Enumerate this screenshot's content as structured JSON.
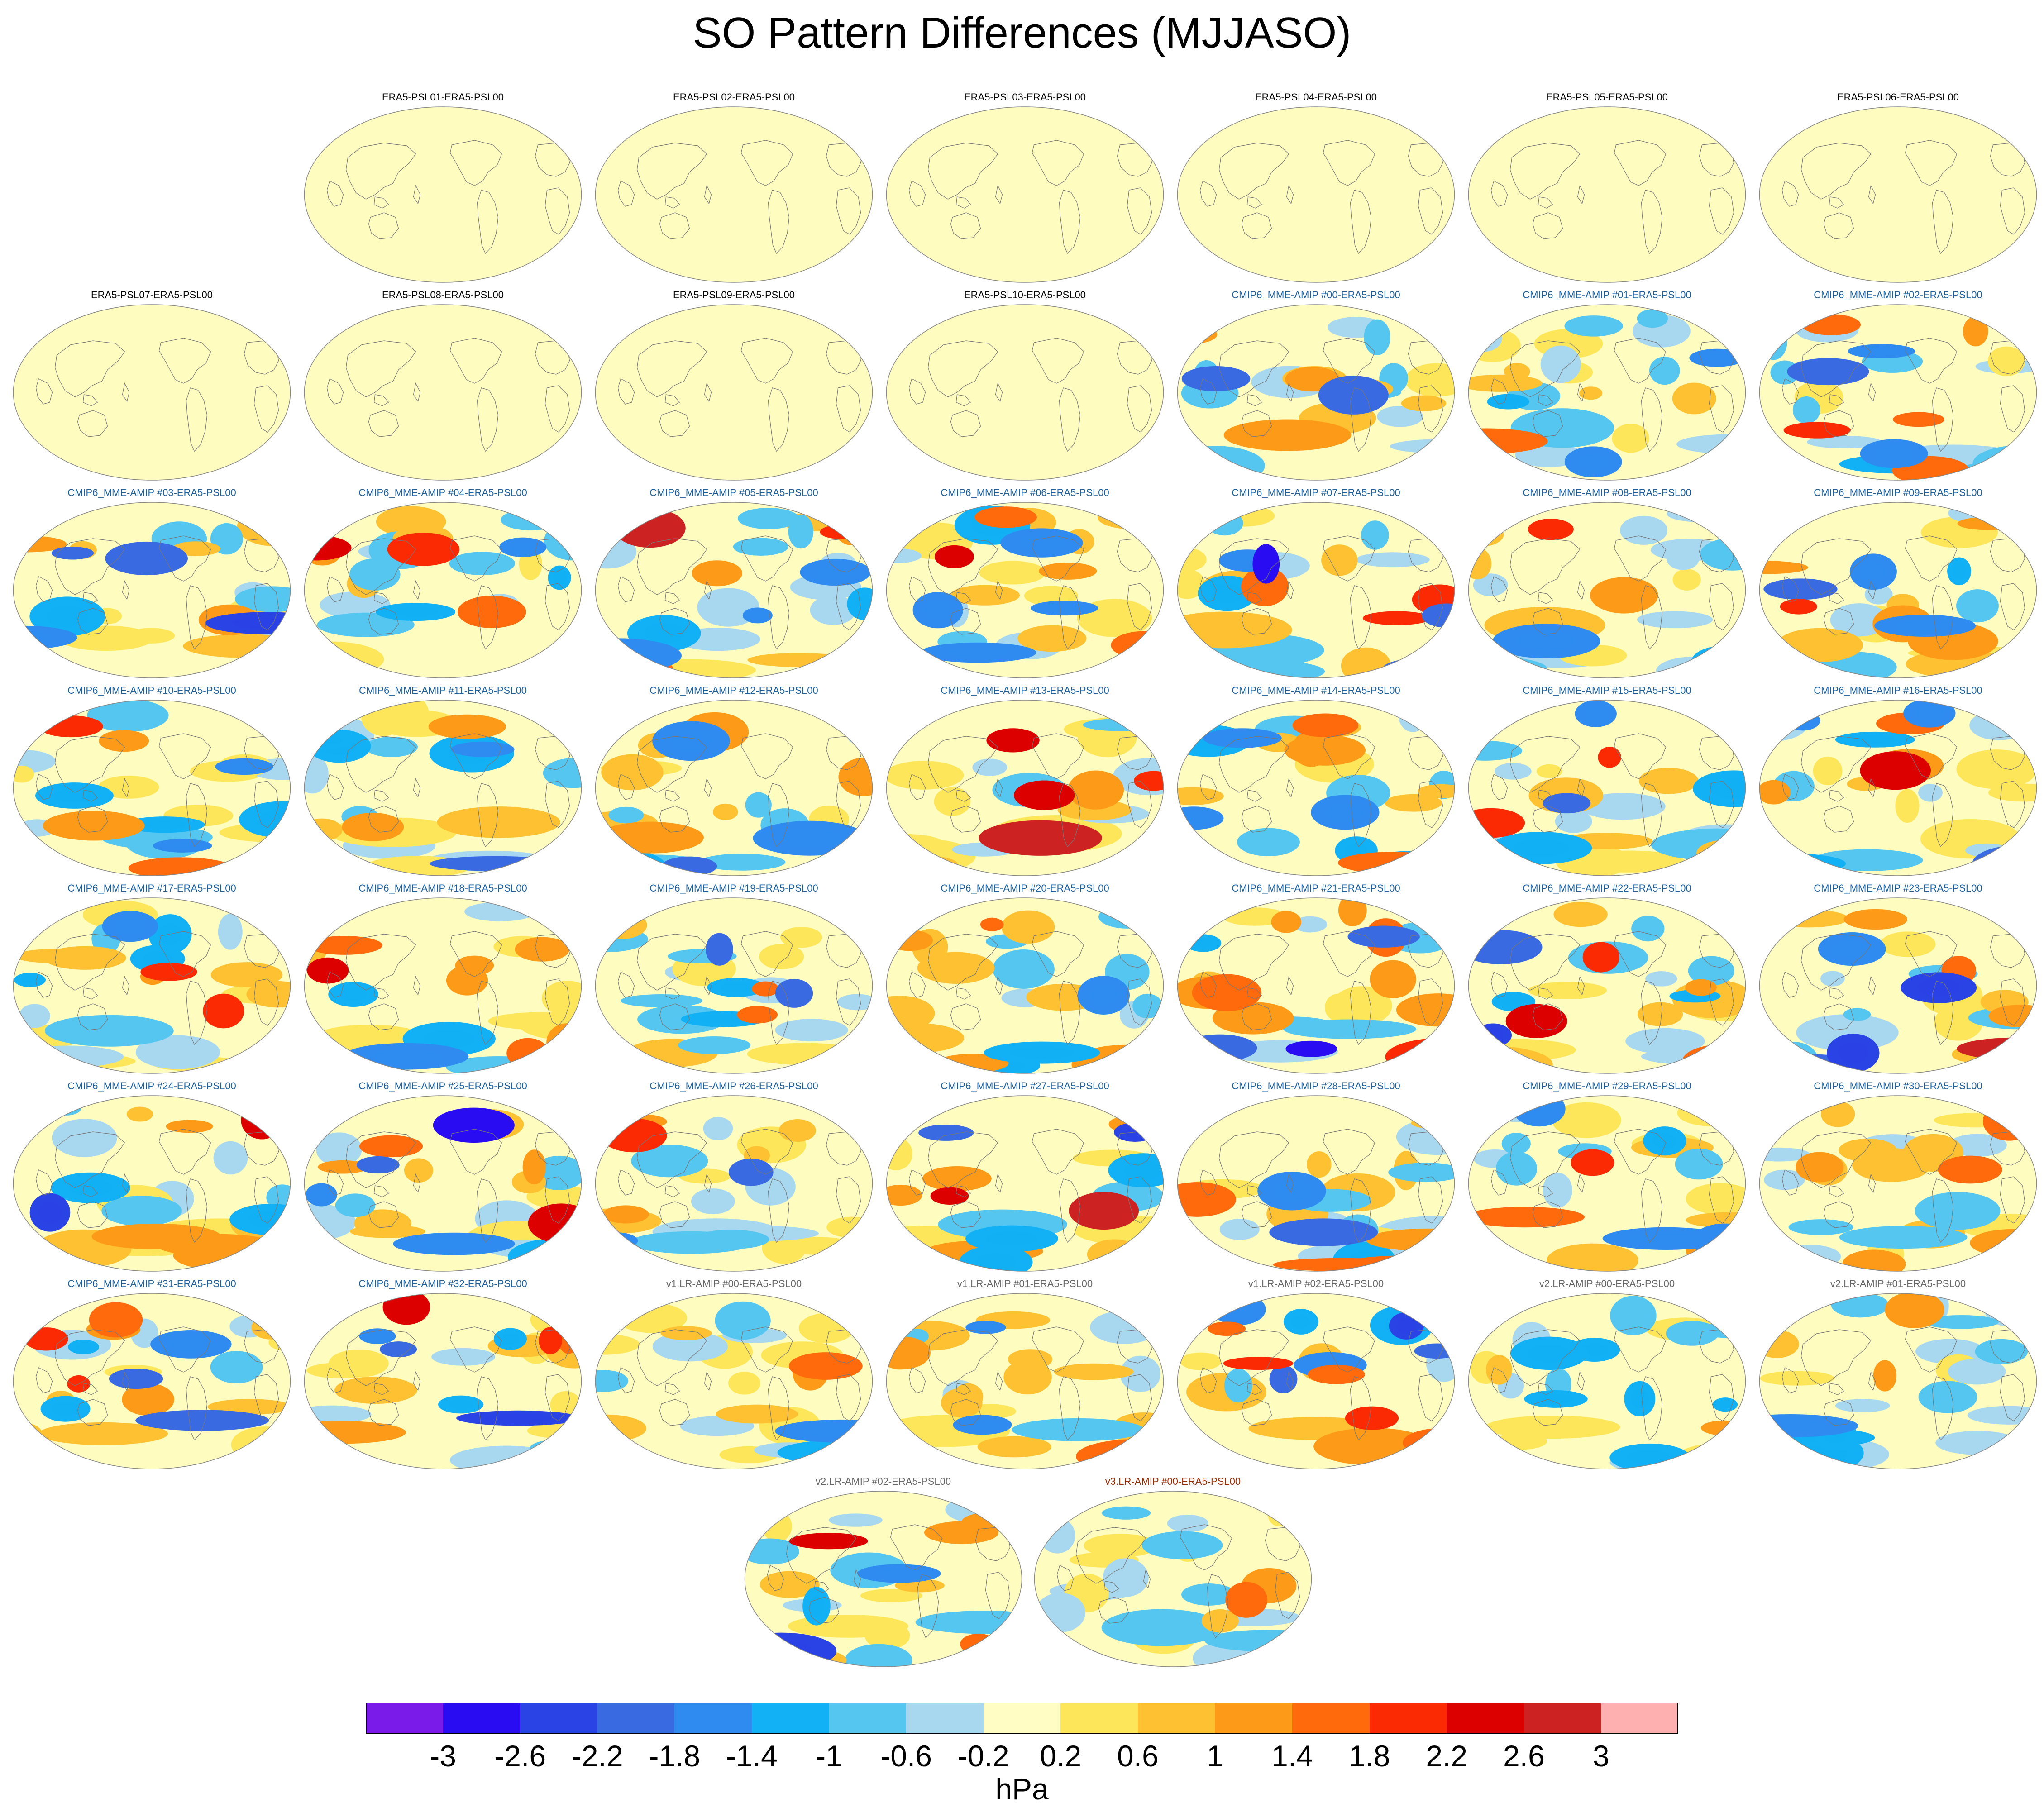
{
  "title": "SO Pattern Differences (MJJASO)",
  "units_label": "hPa",
  "colors": {
    "era5_label": "#000000",
    "cmip6_label": "#1a5fa0",
    "v1_label": "#666666",
    "v2_label": "#666666",
    "v3_label": "#9a2a00",
    "ocean_background": "#fffcc0",
    "coastline": "#777777"
  },
  "map_projection": "Robinson (global, Pacific-centred)",
  "colorbar": {
    "colors": [
      "#7a1bea",
      "#2a0cf2",
      "#2a43e4",
      "#3a6ae2",
      "#2f8bf0",
      "#12b0f5",
      "#55c6f0",
      "#a8d8ef",
      "#fffcc4",
      "#fee65a",
      "#fdc132",
      "#fd9a18",
      "#fe6a0c",
      "#fb2a02",
      "#dd0000",
      "#cc2222",
      "#feb0b0"
    ],
    "tick_labels": [
      "-3",
      "-2.6",
      "-2.2",
      "-1.8",
      "-1.4",
      "-1",
      "-0.6",
      "-0.2",
      "0.2",
      "0.6",
      "1",
      "1.4",
      "1.8",
      "2.2",
      "2.6",
      "3"
    ]
  },
  "panels": [
    {
      "label": "ERA5-PSL01-ERA5-PSL00",
      "group": "era5",
      "intensity": 0.0
    },
    {
      "label": "ERA5-PSL02-ERA5-PSL00",
      "group": "era5",
      "intensity": 0.0
    },
    {
      "label": "ERA5-PSL03-ERA5-PSL00",
      "group": "era5",
      "intensity": 0.0
    },
    {
      "label": "ERA5-PSL04-ERA5-PSL00",
      "group": "era5",
      "intensity": 0.0
    },
    {
      "label": "ERA5-PSL05-ERA5-PSL00",
      "group": "era5",
      "intensity": 0.0
    },
    {
      "label": "ERA5-PSL06-ERA5-PSL00",
      "group": "era5",
      "intensity": 0.0
    },
    {
      "label": "ERA5-PSL07-ERA5-PSL00",
      "group": "era5",
      "intensity": 0.0
    },
    {
      "label": "ERA5-PSL08-ERA5-PSL00",
      "group": "era5",
      "intensity": 0.0
    },
    {
      "label": "ERA5-PSL09-ERA5-PSL00",
      "group": "era5",
      "intensity": 0.0
    },
    {
      "label": "ERA5-PSL10-ERA5-PSL00",
      "group": "era5",
      "intensity": 0.0
    },
    {
      "label": "CMIP6_MME-AMIP  #00-ERA5-PSL00",
      "group": "cmip6",
      "intensity": 0.8
    },
    {
      "label": "CMIP6_MME-AMIP  #01-ERA5-PSL00",
      "group": "cmip6",
      "intensity": 0.8
    },
    {
      "label": "CMIP6_MME-AMIP  #02-ERA5-PSL00",
      "group": "cmip6",
      "intensity": 1.0
    },
    {
      "label": "CMIP6_MME-AMIP  #03-ERA5-PSL00",
      "group": "cmip6",
      "intensity": 0.9
    },
    {
      "label": "CMIP6_MME-AMIP  #04-ERA5-PSL00",
      "group": "cmip6",
      "intensity": 1.0
    },
    {
      "label": "CMIP6_MME-AMIP  #05-ERA5-PSL00",
      "group": "cmip6",
      "intensity": 1.0
    },
    {
      "label": "CMIP6_MME-AMIP  #06-ERA5-PSL00",
      "group": "cmip6",
      "intensity": 1.0
    },
    {
      "label": "CMIP6_MME-AMIP  #07-ERA5-PSL00",
      "group": "cmip6",
      "intensity": 1.0
    },
    {
      "label": "CMIP6_MME-AMIP  #08-ERA5-PSL00",
      "group": "cmip6",
      "intensity": 0.9
    },
    {
      "label": "CMIP6_MME-AMIP  #09-ERA5-PSL00",
      "group": "cmip6",
      "intensity": 0.9
    },
    {
      "label": "CMIP6_MME-AMIP  #10-ERA5-PSL00",
      "group": "cmip6",
      "intensity": 0.8
    },
    {
      "label": "CMIP6_MME-AMIP  #11-ERA5-PSL00",
      "group": "cmip6",
      "intensity": 0.9
    },
    {
      "label": "CMIP6_MME-AMIP  #12-ERA5-PSL00",
      "group": "cmip6",
      "intensity": 0.8
    },
    {
      "label": "CMIP6_MME-AMIP  #13-ERA5-PSL00",
      "group": "cmip6",
      "intensity": 0.9
    },
    {
      "label": "CMIP6_MME-AMIP  #14-ERA5-PSL00",
      "group": "cmip6",
      "intensity": 0.9
    },
    {
      "label": "CMIP6_MME-AMIP  #15-ERA5-PSL00",
      "group": "cmip6",
      "intensity": 0.8
    },
    {
      "label": "CMIP6_MME-AMIP  #16-ERA5-PSL00",
      "group": "cmip6",
      "intensity": 0.8
    },
    {
      "label": "CMIP6_MME-AMIP  #17-ERA5-PSL00",
      "group": "cmip6",
      "intensity": 0.9
    },
    {
      "label": "CMIP6_MME-AMIP  #18-ERA5-PSL00",
      "group": "cmip6",
      "intensity": 1.0
    },
    {
      "label": "CMIP6_MME-AMIP  #19-ERA5-PSL00",
      "group": "cmip6",
      "intensity": 0.8
    },
    {
      "label": "CMIP6_MME-AMIP  #20-ERA5-PSL00",
      "group": "cmip6",
      "intensity": 0.9
    },
    {
      "label": "CMIP6_MME-AMIP  #21-ERA5-PSL00",
      "group": "cmip6",
      "intensity": 0.9
    },
    {
      "label": "CMIP6_MME-AMIP  #22-ERA5-PSL00",
      "group": "cmip6",
      "intensity": 1.0
    },
    {
      "label": "CMIP6_MME-AMIP  #23-ERA5-PSL00",
      "group": "cmip6",
      "intensity": 0.9
    },
    {
      "label": "CMIP6_MME-AMIP  #24-ERA5-PSL00",
      "group": "cmip6",
      "intensity": 0.8
    },
    {
      "label": "CMIP6_MME-AMIP  #25-ERA5-PSL00",
      "group": "cmip6",
      "intensity": 1.0
    },
    {
      "label": "CMIP6_MME-AMIP  #26-ERA5-PSL00",
      "group": "cmip6",
      "intensity": 0.9
    },
    {
      "label": "CMIP6_MME-AMIP  #27-ERA5-PSL00",
      "group": "cmip6",
      "intensity": 1.0
    },
    {
      "label": "CMIP6_MME-AMIP  #28-ERA5-PSL00",
      "group": "cmip6",
      "intensity": 0.7
    },
    {
      "label": "CMIP6_MME-AMIP  #29-ERA5-PSL00",
      "group": "cmip6",
      "intensity": 0.7
    },
    {
      "label": "CMIP6_MME-AMIP  #30-ERA5-PSL00",
      "group": "cmip6",
      "intensity": 0.8
    },
    {
      "label": "CMIP6_MME-AMIP  #31-ERA5-PSL00",
      "group": "cmip6",
      "intensity": 0.9
    },
    {
      "label": "CMIP6_MME-AMIP  #32-ERA5-PSL00",
      "group": "cmip6",
      "intensity": 0.9
    },
    {
      "label": "v1.LR-AMIP  #00-ERA5-PSL00",
      "group": "v1",
      "intensity": 0.7
    },
    {
      "label": "v1.LR-AMIP  #01-ERA5-PSL00",
      "group": "v1",
      "intensity": 0.7
    },
    {
      "label": "v1.LR-AMIP  #02-ERA5-PSL00",
      "group": "v1",
      "intensity": 0.8
    },
    {
      "label": "v2.LR-AMIP  #00-ERA5-PSL00",
      "group": "v2",
      "intensity": 0.8
    },
    {
      "label": "v2.LR-AMIP  #01-ERA5-PSL00",
      "group": "v2",
      "intensity": 0.7
    },
    {
      "label": "v2.LR-AMIP  #02-ERA5-PSL00",
      "group": "v2",
      "intensity": 0.8
    },
    {
      "label": "v3.LR-AMIP  #00-ERA5-PSL00",
      "group": "v3",
      "intensity": 0.7
    }
  ]
}
